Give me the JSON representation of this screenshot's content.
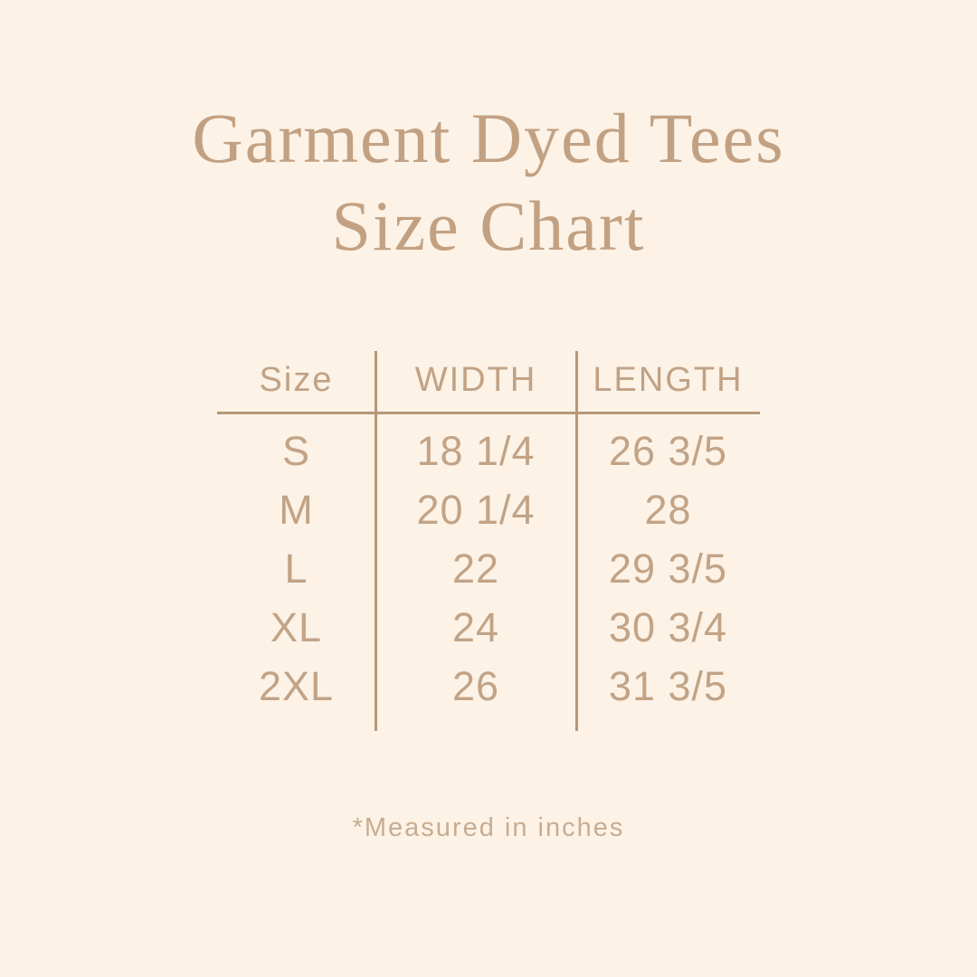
{
  "page": {
    "background_color": "#fcf2e6",
    "accent_color": "#c2a386",
    "line_color": "#b69878"
  },
  "title": {
    "line1": "Garment Dyed Tees",
    "line2": "Size Chart"
  },
  "table": {
    "headers": [
      "Size",
      "WIDTH",
      "LENGTH"
    ],
    "rows": [
      {
        "size": "S",
        "width": "18 1/4",
        "length": "26 3/5"
      },
      {
        "size": "M",
        "width": "20 1/4",
        "length": "28"
      },
      {
        "size": "L",
        "width": "22",
        "length": "29 3/5"
      },
      {
        "size": "XL",
        "width": "24",
        "length": "30 3/4"
      },
      {
        "size": "2XL",
        "width": "26",
        "length": "31 3/5"
      }
    ]
  },
  "footnote": "*Measured in inches"
}
